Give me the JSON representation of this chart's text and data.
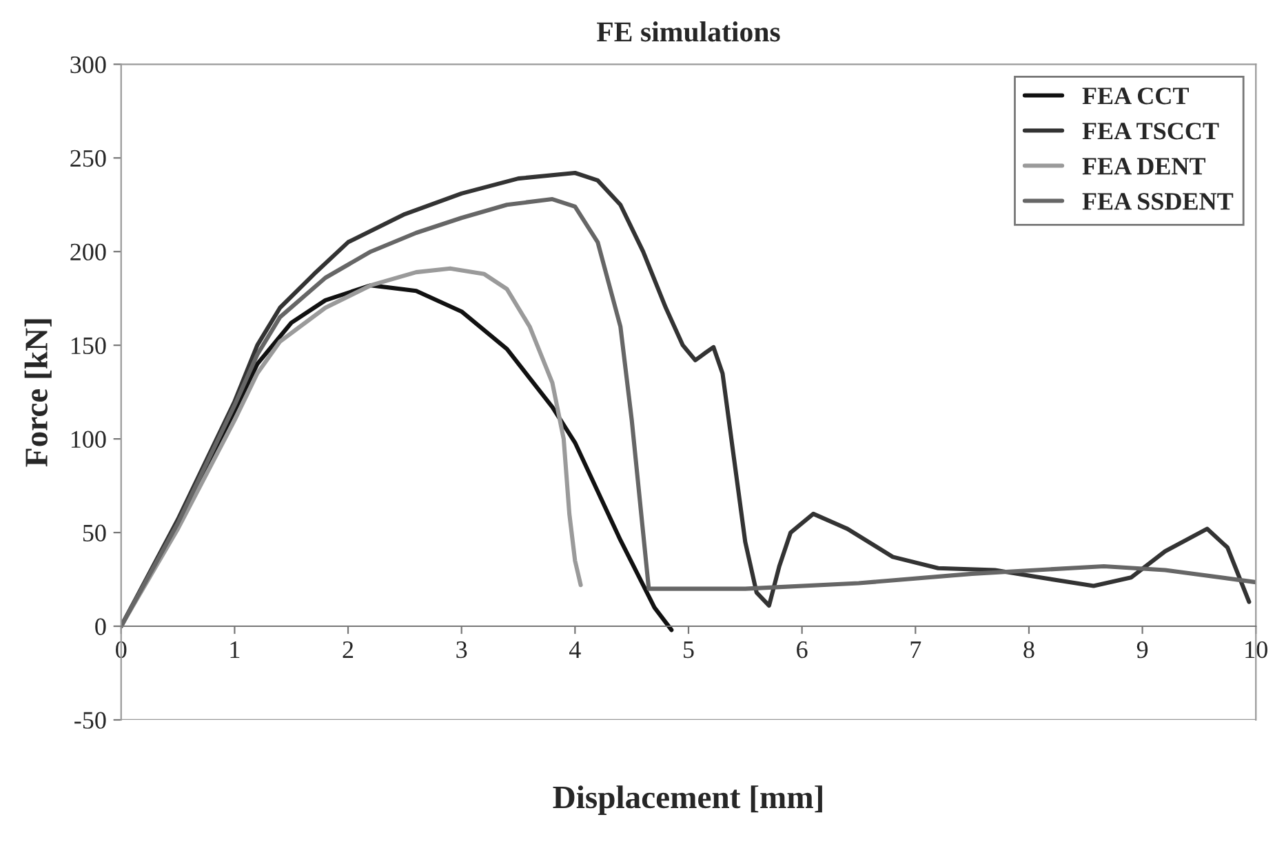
{
  "chart_data": {
    "type": "line",
    "title": "FE simulations",
    "xlabel": "Displacement [mm]",
    "ylabel": "Force [kN]",
    "xlim": [
      0,
      10
    ],
    "xticks": [
      0,
      1,
      2,
      3,
      4,
      5,
      6,
      7,
      8,
      9,
      10
    ],
    "ylim": [
      -50,
      300
    ],
    "yticks": [
      -50,
      0,
      50,
      100,
      150,
      200,
      250,
      300
    ],
    "grid": false,
    "legend": "top right",
    "marker": "none",
    "line_style": "solid",
    "series": [
      {
        "name": "FEA CCT",
        "color": "#111111",
        "x": [
          0,
          0.5,
          1,
          1.2,
          1.5,
          1.8,
          2.2,
          2.6,
          3,
          3.4,
          3.8,
          4.0,
          4.2,
          4.4,
          4.6,
          4.7,
          4.85
        ],
        "values": [
          0,
          55,
          115,
          140,
          162,
          174,
          182,
          179,
          168,
          148,
          117,
          98,
          72,
          46,
          22,
          10,
          -2
        ]
      },
      {
        "name": "FEA TSCCT",
        "color": "#333333",
        "x": [
          0,
          0.5,
          1,
          1.2,
          1.4,
          1.7,
          2,
          2.5,
          3,
          3.5,
          4,
          4.2,
          4.4,
          4.6,
          4.8,
          4.95,
          5.06,
          5.15,
          5.22,
          5.3,
          5.4,
          5.5,
          5.6,
          5.71,
          5.8,
          5.9,
          6.1,
          6.4,
          6.8,
          7.2,
          7.7,
          8.1,
          8.57,
          8.9,
          9.2,
          9.57,
          9.75,
          9.94
        ],
        "values": [
          0,
          57,
          120,
          150,
          170,
          188,
          205,
          220,
          231,
          239,
          242,
          238,
          225,
          200,
          170,
          150,
          142,
          146,
          149,
          135,
          90,
          45,
          18,
          11,
          32,
          50,
          60,
          52,
          37,
          31,
          30,
          26,
          21.5,
          26,
          40,
          52,
          42,
          13
        ]
      },
      {
        "name": "FEA DENT",
        "color": "#9a9a9a",
        "x": [
          0,
          0.5,
          1,
          1.2,
          1.4,
          1.8,
          2.2,
          2.6,
          2.9,
          3.2,
          3.4,
          3.6,
          3.8,
          3.9,
          3.95,
          4.0,
          4.05
        ],
        "values": [
          0,
          52,
          110,
          135,
          152,
          170,
          182,
          189,
          191,
          188,
          180,
          160,
          130,
          100,
          60,
          35,
          22
        ]
      },
      {
        "name": "FEA SSDENT",
        "color": "#666666",
        "x": [
          0,
          0.5,
          1,
          1.2,
          1.4,
          1.8,
          2.2,
          2.6,
          3,
          3.4,
          3.8,
          4.0,
          4.2,
          4.4,
          4.5,
          4.6,
          4.65,
          5.5,
          6.5,
          7.5,
          8.66,
          9.2,
          10
        ],
        "values": [
          0,
          55,
          118,
          145,
          165,
          186,
          200,
          210,
          218,
          225,
          228,
          224,
          205,
          160,
          110,
          50,
          20,
          20,
          23,
          28,
          32,
          30,
          23.5
        ]
      }
    ]
  }
}
